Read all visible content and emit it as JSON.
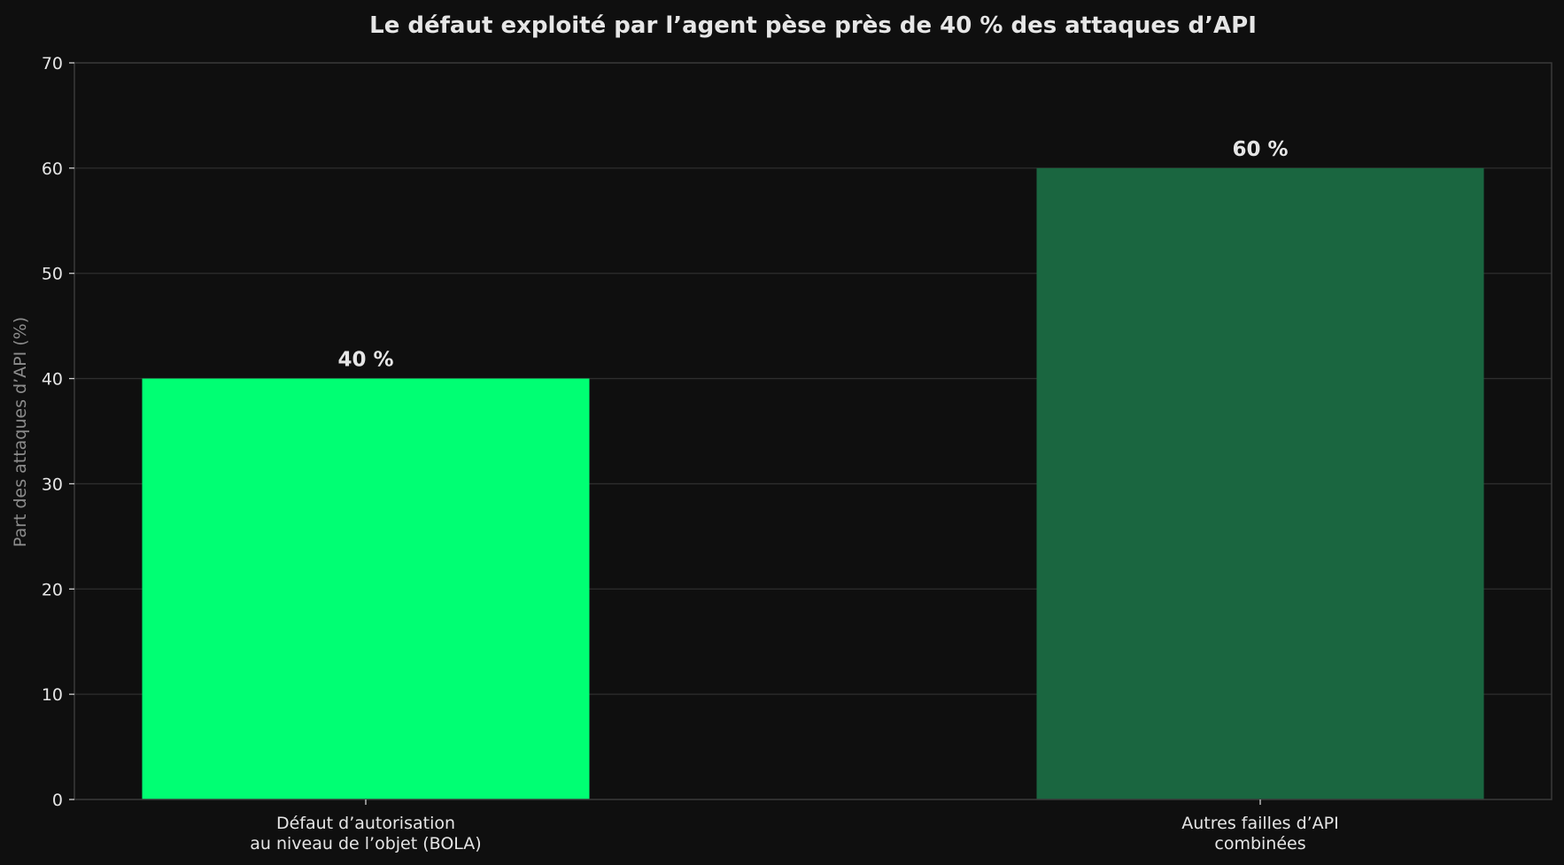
{
  "chart_data": {
    "type": "bar",
    "title": "Le défaut exploité par l’agent pèse près de 40 % des attaques d’API",
    "ylabel": "Part des attaques d’API (%)",
    "xlabel": "",
    "ylim": [
      0,
      70
    ],
    "yticks": [
      0,
      10,
      20,
      30,
      40,
      50,
      60,
      70
    ],
    "grid": true,
    "categories": [
      [
        "Défaut d’autorisation",
        "au niveau de l’objet (BOLA)"
      ],
      [
        "Autres failles d’API",
        "combinées"
      ]
    ],
    "values": [
      40,
      60
    ],
    "value_labels": [
      "40 %",
      "60 %"
    ],
    "colors": [
      "#00ff73",
      "#1a6640"
    ]
  }
}
